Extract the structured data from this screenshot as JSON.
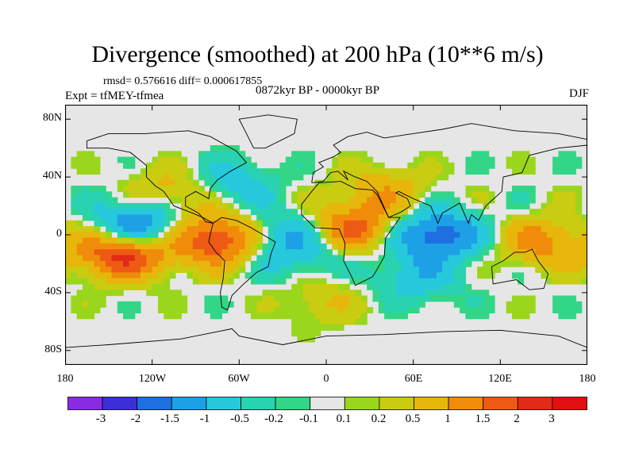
{
  "header": {
    "title": "Divergence (smoothed) at 200 hPa (10**6 m/s)",
    "stats": "rmsd= 0.576616 diff= 0.000617855",
    "experiment": "Expt = tfMEY-tfmea",
    "period": "0872kyr BP - 0000kyr BP",
    "season": "DJF"
  },
  "axes": {
    "y_ticks": [
      "80N",
      "40N",
      "0",
      "40S",
      "80S"
    ],
    "x_ticks": [
      "180",
      "120W",
      "60W",
      "0",
      "60E",
      "120E",
      "180"
    ]
  },
  "colorbar": {
    "labels": [
      "-3",
      "-2",
      "-1.5",
      "-1",
      "-0.5",
      "-0.2",
      "-0.1",
      "0.1",
      "0.2",
      "0.5",
      "1",
      "1.5",
      "2",
      "3"
    ],
    "colors": [
      "#8a2be2",
      "#3c2fd6",
      "#1e6fe0",
      "#1ea0e6",
      "#26c9dc",
      "#29d2b0",
      "#32d686",
      "#e6e6e6",
      "#9ad61c",
      "#c9cc10",
      "#e6b70a",
      "#f08c0a",
      "#ee5a14",
      "#e22a16",
      "#e01010"
    ]
  },
  "chart_data": {
    "type": "heatmap",
    "title": "Divergence (smoothed) at 200 hPa (10**6 m/s)",
    "xlabel": "",
    "ylabel": "",
    "x_range": [
      -180,
      180
    ],
    "y_range": [
      -90,
      90
    ],
    "levels": [
      -3,
      -2,
      -1.5,
      -1,
      -0.5,
      -0.2,
      -0.1,
      0.1,
      0.2,
      0.5,
      1,
      1.5,
      2,
      3
    ],
    "features": [
      {
        "lon": -140,
        "lat": -12,
        "value": 2.5
      },
      {
        "lon": -75,
        "lat": -3,
        "value": 2.2
      },
      {
        "lon": 20,
        "lat": 5,
        "value": 1.6
      },
      {
        "lon": 150,
        "lat": -5,
        "value": 1.2
      },
      {
        "lon": -130,
        "lat": 5,
        "value": -2.0
      },
      {
        "lon": 75,
        "lat": 0,
        "value": -2.0
      },
      {
        "lon": -30,
        "lat": 0,
        "value": -1.0
      },
      {
        "lon": -100,
        "lat": 30,
        "value": 1.0
      },
      {
        "lon": 40,
        "lat": 30,
        "value": 0.8
      },
      {
        "lon": -70,
        "lat": 35,
        "value": -1.0
      },
      {
        "lon": 0,
        "lat": -45,
        "value": 0.5
      },
      {
        "lon": 60,
        "lat": -30,
        "value": -0.8
      },
      {
        "lon": -20,
        "lat": -15,
        "value": -0.6
      }
    ]
  }
}
